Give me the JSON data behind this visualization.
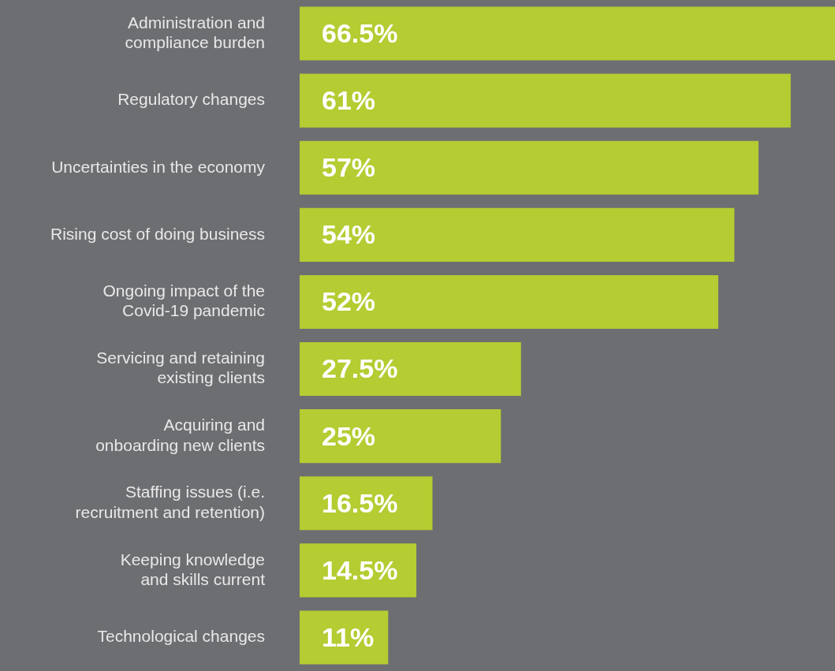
{
  "chart_data": {
    "type": "bar",
    "orientation": "horizontal",
    "categories": [
      "Administration and compliance burden",
      "Regulatory changes",
      "Uncertainties in the economy",
      "Rising cost of doing business",
      "Ongoing impact of the Covid-19 pandemic",
      "Servicing and retaining existing clients",
      "Acquiring and onboarding new clients",
      "Staffing issues (i.e. recruitment and retention)",
      "Keeping knowledge and skills current",
      "Technological changes"
    ],
    "values": [
      66.5,
      61,
      57,
      54,
      52,
      27.5,
      25,
      16.5,
      14.5,
      11
    ],
    "value_labels": [
      "66.5%",
      "61%",
      "57%",
      "54%",
      "52%",
      "27.5%",
      "25%",
      "16.5%",
      "14.5%",
      "11%"
    ],
    "color": "#b5cc32",
    "xlim": [
      0,
      66.5
    ],
    "tick_labels": "y"
  }
}
